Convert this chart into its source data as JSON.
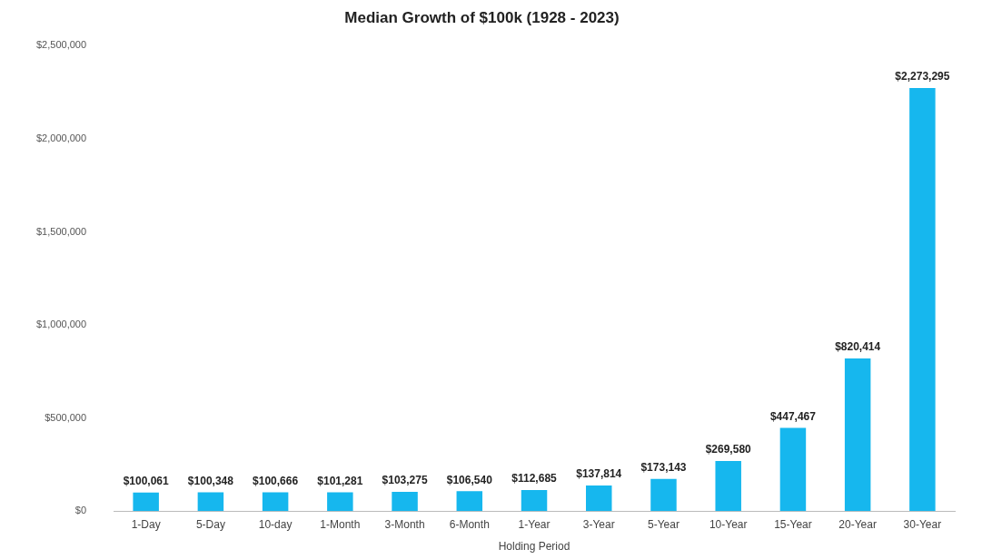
{
  "chart_data": {
    "type": "bar",
    "title": "Median Growth of $100k (1928 - 2023)",
    "xlabel": "Holding Period",
    "categories": [
      "1-Day",
      "5-Day",
      "10-day",
      "1-Month",
      "3-Month",
      "6-Month",
      "1-Year",
      "3-Year",
      "5-Year",
      "10-Year",
      "15-Year",
      "20-Year",
      "30-Year"
    ],
    "values": [
      100061,
      100348,
      100666,
      101281,
      103275,
      106540,
      112685,
      137814,
      173143,
      269580,
      447467,
      820414,
      2273295
    ],
    "value_labels": [
      "$100,061",
      "$100,348",
      "$100,666",
      "$101,281",
      "$103,275",
      "$106,540",
      "$112,685",
      "$137,814",
      "$173,143",
      "$269,580",
      "$447,467",
      "$820,414",
      "$2,273,295"
    ],
    "color": "#16b7ee",
    "ylim": [
      0,
      2500000
    ],
    "yticks": [
      {
        "value": 0,
        "label": "$0"
      },
      {
        "value": 500000,
        "label": "$500,000"
      },
      {
        "value": 1000000,
        "label": "$1,000,000"
      },
      {
        "value": 1500000,
        "label": "$1,500,000"
      },
      {
        "value": 2000000,
        "label": "$2,000,000"
      },
      {
        "value": 2500000,
        "label": "$2,500,000"
      }
    ],
    "grid": false,
    "legend": false
  }
}
